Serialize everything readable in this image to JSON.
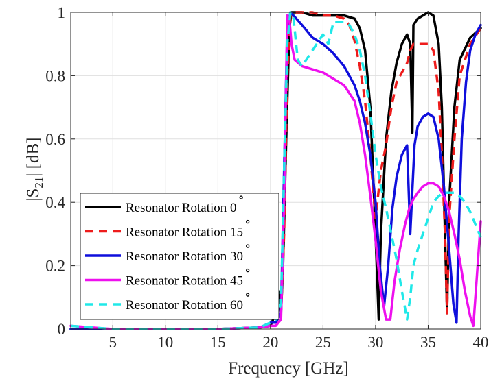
{
  "chart_data": {
    "type": "line",
    "xlabel": "Frequency [GHz]",
    "ylabel_base": "|S",
    "ylabel_sub": "21",
    "ylabel_rest": "| [dB]",
    "xlim": [
      1,
      40
    ],
    "ylim": [
      0,
      1
    ],
    "xticks": [
      5,
      10,
      15,
      20,
      25,
      30,
      35,
      40
    ],
    "xtick_labels": [
      "5",
      "10",
      "15",
      "20",
      "25",
      "30",
      "35",
      "40"
    ],
    "yticks": [
      0,
      0.2,
      0.4,
      0.6,
      0.8,
      1
    ],
    "ytick_labels": [
      "0",
      "0.2",
      "0.4",
      "0.6",
      "0.8",
      "1"
    ],
    "grid": true,
    "legend_position": "bottom-left",
    "degree_symbol": "∘",
    "series": [
      {
        "name": "Resonator Rotation 0",
        "color": "#000000",
        "dash": "solid",
        "x": [
          1,
          5,
          10,
          15,
          19,
          20,
          20.5,
          20.8,
          21,
          21.2,
          21.5,
          21.8,
          22,
          23,
          24,
          25,
          26,
          27,
          28,
          28.5,
          29,
          29.5,
          30,
          30.3,
          30.5,
          31,
          31.5,
          32,
          32.5,
          33,
          33.3,
          33.5,
          33.6,
          34,
          34.5,
          35,
          35.5,
          36,
          36.3,
          36.6,
          36.8,
          37,
          37.5,
          38,
          39,
          40
        ],
        "y": [
          0.0,
          0.0,
          0.0,
          0.0,
          0.005,
          0.01,
          0.05,
          0.12,
          0.05,
          0.2,
          0.6,
          0.95,
          1.0,
          1.0,
          0.99,
          0.99,
          0.99,
          0.99,
          0.98,
          0.95,
          0.88,
          0.7,
          0.3,
          0.03,
          0.3,
          0.6,
          0.75,
          0.84,
          0.9,
          0.93,
          0.9,
          0.62,
          0.96,
          0.98,
          0.99,
          1.0,
          0.99,
          0.9,
          0.7,
          0.3,
          0.05,
          0.4,
          0.7,
          0.85,
          0.92,
          0.95
        ]
      },
      {
        "name": "Resonator Rotation 15",
        "color": "#ee1c1c",
        "dash": "dashed",
        "x": [
          1,
          5,
          10,
          15,
          19,
          20,
          20.5,
          21,
          21.3,
          21.6,
          21.9,
          22.2,
          23,
          24,
          25,
          26,
          27,
          27.5,
          28,
          28.5,
          29,
          29.5,
          30,
          30.5,
          31,
          31.5,
          32,
          32.5,
          33,
          33.3,
          33.6,
          34,
          34.5,
          35,
          35.5,
          36,
          36.3,
          36.6,
          36.8,
          37,
          37.5,
          38,
          39,
          40
        ],
        "y": [
          0.0,
          0.0,
          0.0,
          0.0,
          0.005,
          0.01,
          0.02,
          0.05,
          0.3,
          0.8,
          0.99,
          1.0,
          1.0,
          1.0,
          0.99,
          0.99,
          0.98,
          0.96,
          0.91,
          0.83,
          0.72,
          0.55,
          0.35,
          0.5,
          0.58,
          0.7,
          0.78,
          0.81,
          0.84,
          0.88,
          0.9,
          0.9,
          0.9,
          0.9,
          0.88,
          0.75,
          0.55,
          0.3,
          0.05,
          0.35,
          0.6,
          0.8,
          0.9,
          0.95
        ]
      },
      {
        "name": "Resonator Rotation 30",
        "color": "#0f0fdc",
        "dash": "solid",
        "x": [
          1,
          5,
          10,
          15,
          19,
          20,
          20.5,
          21,
          21.3,
          21.6,
          21.9,
          22.2,
          23,
          24,
          25,
          26,
          27,
          28,
          28.5,
          29,
          29.5,
          30,
          30.4,
          30.8,
          31.2,
          31.6,
          32,
          32.5,
          33,
          33.3,
          33.7,
          34,
          34.5,
          35,
          35.5,
          36,
          36.5,
          37,
          37.4,
          37.7,
          37.9,
          38.2,
          38.6,
          39,
          39.5,
          40
        ],
        "y": [
          0.0,
          0.0,
          0.0,
          0.0,
          0.005,
          0.02,
          0.02,
          0.05,
          0.5,
          0.95,
          1.0,
          0.99,
          0.96,
          0.92,
          0.9,
          0.87,
          0.83,
          0.77,
          0.72,
          0.65,
          0.55,
          0.4,
          0.2,
          0.07,
          0.2,
          0.38,
          0.48,
          0.55,
          0.58,
          0.3,
          0.58,
          0.64,
          0.67,
          0.68,
          0.67,
          0.6,
          0.45,
          0.25,
          0.08,
          0.02,
          0.3,
          0.6,
          0.78,
          0.88,
          0.93,
          0.96
        ]
      },
      {
        "name": "Resonator Rotation 45",
        "color": "#ee10ee",
        "dash": "solid",
        "x": [
          1,
          5,
          10,
          15,
          19,
          20,
          20.5,
          21,
          21.3,
          21.6,
          21.8,
          22,
          22.3,
          23,
          24,
          25,
          26,
          27,
          28,
          28.5,
          29,
          29.5,
          30,
          30.5,
          31,
          31.4,
          31.8,
          32.3,
          32.8,
          33.2,
          33.6,
          34,
          34.5,
          35,
          35.5,
          36,
          36.5,
          37,
          37.5,
          38,
          38.5,
          39,
          39.3,
          39.6,
          40
        ],
        "y": [
          0.01,
          0.0,
          0.0,
          0.0,
          0.005,
          0.01,
          0.01,
          0.03,
          0.4,
          0.99,
          0.98,
          0.9,
          0.85,
          0.83,
          0.82,
          0.81,
          0.79,
          0.77,
          0.72,
          0.65,
          0.55,
          0.42,
          0.28,
          0.12,
          0.03,
          0.03,
          0.15,
          0.25,
          0.33,
          0.38,
          0.41,
          0.43,
          0.45,
          0.46,
          0.46,
          0.45,
          0.42,
          0.37,
          0.3,
          0.22,
          0.12,
          0.04,
          0.01,
          0.15,
          0.34
        ]
      },
      {
        "name": "Resonator Rotation 60",
        "color": "#20e8e8",
        "dash": "dashed",
        "x": [
          1,
          5,
          10,
          15,
          19,
          20,
          20.5,
          21,
          21.3,
          21.6,
          21.9,
          22.2,
          22.6,
          23,
          24,
          25,
          25.5,
          26,
          27,
          27.5,
          28,
          28.5,
          29,
          29.5,
          30,
          30.5,
          31,
          31.5,
          32,
          32.5,
          33,
          33.3,
          33.6,
          34,
          34.5,
          35,
          35.5,
          36,
          36.5,
          37,
          37.5,
          38,
          38.5,
          39,
          39.5,
          40
        ],
        "y": [
          0.01,
          0.0,
          0.0,
          0.0,
          0.005,
          0.02,
          0.03,
          0.08,
          0.5,
          0.9,
          1.0,
          0.98,
          0.85,
          0.83,
          0.88,
          0.93,
          0.9,
          0.97,
          0.97,
          0.96,
          0.93,
          0.88,
          0.8,
          0.68,
          0.55,
          0.45,
          0.38,
          0.3,
          0.22,
          0.12,
          0.03,
          0.1,
          0.2,
          0.25,
          0.3,
          0.35,
          0.4,
          0.42,
          0.43,
          0.43,
          0.43,
          0.42,
          0.4,
          0.37,
          0.33,
          0.29
        ]
      }
    ]
  }
}
